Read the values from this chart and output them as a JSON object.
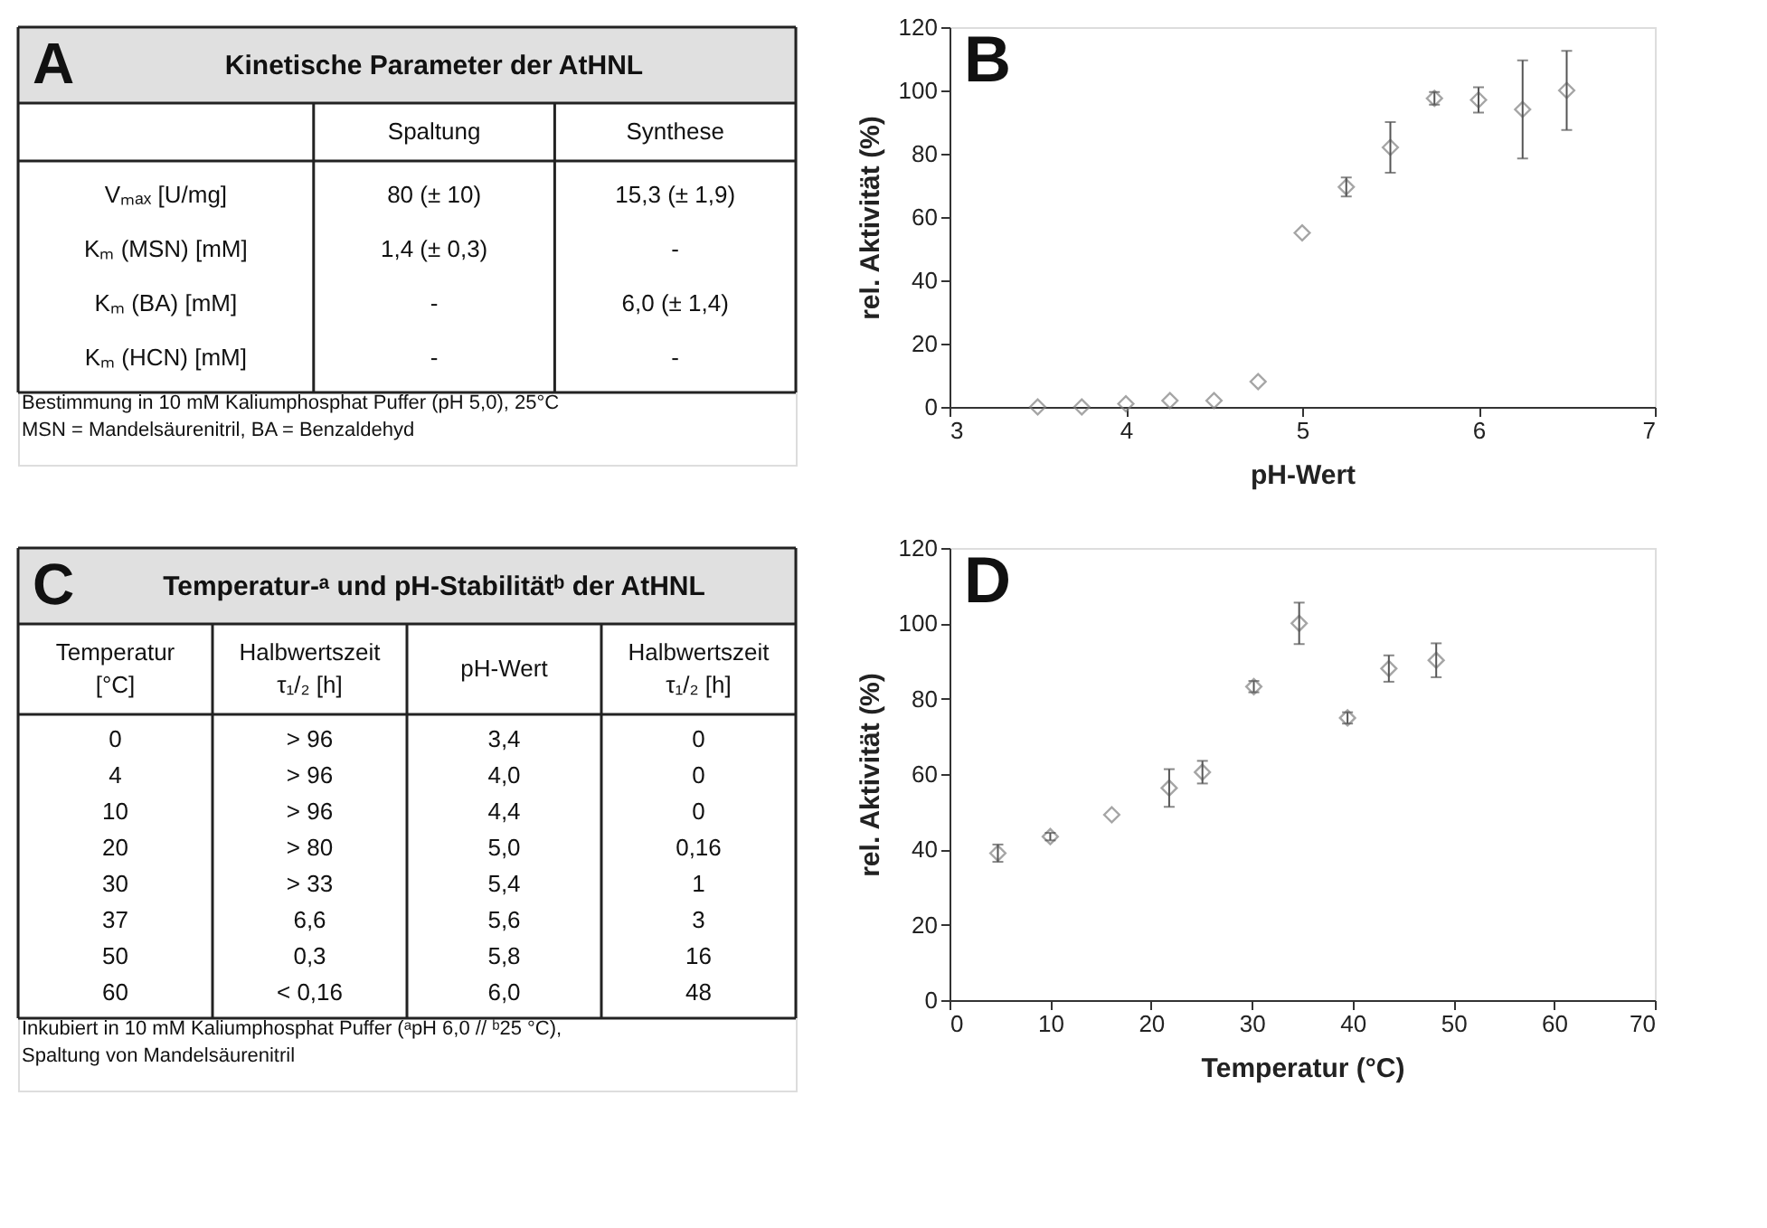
{
  "chart_data": [
    {
      "type": "other",
      "title": "Kinetische Parameter der AtHNL",
      "categories": [
        "Spaltung",
        "Synthese"
      ],
      "y_categories": [
        "Vₘₐₓ [U/mg]",
        "Kₘ (MSN) [mM]",
        "Kₘ (BA) [mM]",
        "Kₘ (HCN) [mM]"
      ],
      "cell_labels": [
        [
          "80  (± 10)",
          "15,3 (± 1,9)"
        ],
        [
          "1,4 (± 0,3)",
          "-"
        ],
        [
          "-",
          "6,0 (± 1,4)"
        ],
        [
          "-",
          "-"
        ]
      ],
      "annotations": [
        "A",
        "Bestimmung in 10 mM Kaliumphosphat Puffer (pH 5,0), 25°C",
        "MSN = Mandelsäurenitril, BA = Benzaldehyd"
      ]
    },
    {
      "type": "scatter",
      "xlabel": "pH-Wert",
      "ylabel": "rel. Aktivität (%)",
      "xlim": [
        3,
        7
      ],
      "xticks": [
        3,
        4,
        5,
        6,
        7
      ],
      "ylim": [
        0,
        120
      ],
      "yticks": [
        0,
        20,
        40,
        60,
        80,
        100,
        120
      ],
      "grid": false,
      "marker": "diamond",
      "annotations": [
        "B"
      ],
      "series": [
        {
          "color": "#808080",
          "x": [
            3.5,
            3.75,
            4.0,
            4.25,
            4.5,
            4.75,
            5.0,
            5.25,
            5.5,
            5.75,
            6.0,
            6.25,
            6.5
          ],
          "values": [
            0,
            0,
            1,
            2,
            2,
            8,
            55,
            69.5,
            82,
            97.5,
            97,
            94,
            100
          ],
          "errors": [
            null,
            null,
            null,
            null,
            null,
            null,
            null,
            3,
            8,
            2,
            4,
            15.5,
            12.5
          ]
        }
      ]
    },
    {
      "type": "other",
      "title": "Temperatur-ᵃ und pH-Stabilitätᵇ der AtHNL",
      "categories": [
        "Temperatur [°C]",
        "Halbwertszeit τ₁/₂ [h]",
        "pH-Wert",
        "Halbwertszeit τ₁/₂ [h]"
      ],
      "cell_labels": [
        [
          "0",
          "> 96",
          "3,4",
          "0"
        ],
        [
          "4",
          "> 96",
          "4,0",
          "0"
        ],
        [
          "10",
          "> 96",
          "4,4",
          "0"
        ],
        [
          "20",
          "> 80",
          "5,0",
          "0,16"
        ],
        [
          "30",
          "> 33",
          "5,4",
          "1"
        ],
        [
          "37",
          "6,6",
          "5,6",
          "3"
        ],
        [
          "50",
          "0,3",
          "5,8",
          "16"
        ],
        [
          "60",
          "< 0,16",
          "6,0",
          "48"
        ]
      ],
      "annotations": [
        "C",
        "Inkubiert in 10 mM Kaliumphosphat Puffer (ᵃpH 6,0 // ᵇ25 °C),",
        "Spaltung von Mandelsäurenitril"
      ]
    },
    {
      "type": "scatter",
      "xlabel": "Temperatur (°C)",
      "ylabel": "rel. Aktivität (%)",
      "xlim": [
        0,
        70
      ],
      "xticks": [
        0,
        10,
        20,
        30,
        40,
        50,
        60,
        70
      ],
      "ylim": [
        0,
        120
      ],
      "yticks": [
        0,
        20,
        40,
        60,
        80,
        100,
        120
      ],
      "grid": false,
      "marker": "diamond",
      "annotations": [
        "D"
      ],
      "series": [
        {
          "color": "#808080",
          "x": [
            4.8,
            10,
            16.1,
            21.8,
            25.1,
            30.2,
            34.7,
            39.5,
            43.6,
            48.3
          ],
          "values": [
            39,
            43.4,
            49.2,
            56.3,
            60.5,
            83.2,
            100,
            74.9,
            88,
            90.2
          ],
          "errors": [
            2.3,
            1,
            null,
            5,
            3,
            1.5,
            5.5,
            1.5,
            3.5,
            4.5
          ]
        }
      ]
    }
  ]
}
